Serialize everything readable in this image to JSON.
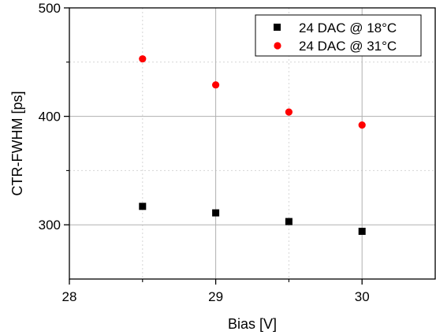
{
  "chart_data": {
    "type": "scatter",
    "title": "",
    "xlabel": "Bias [V]",
    "ylabel": "CTR-FWHM [ps]",
    "xlim": [
      28,
      30.5
    ],
    "ylim": [
      250,
      500
    ],
    "xticks": [
      28,
      29,
      30
    ],
    "yticks": [
      300,
      400,
      500
    ],
    "x_minor_grid": [
      28.5,
      29.5
    ],
    "y_minor_grid": [
      350,
      450
    ],
    "grid": true,
    "legend_position": "top-right",
    "series": [
      {
        "name": "24 DAC @ 18°C",
        "marker": "square",
        "color": "#000000",
        "x": [
          28.5,
          29.0,
          29.5,
          30.0
        ],
        "y": [
          317,
          311,
          303,
          294
        ]
      },
      {
        "name": "24 DAC @ 31°C",
        "marker": "circle",
        "color": "#ff0000",
        "x": [
          28.5,
          29.0,
          29.5,
          30.0
        ],
        "y": [
          453,
          429,
          404,
          392
        ]
      }
    ]
  }
}
